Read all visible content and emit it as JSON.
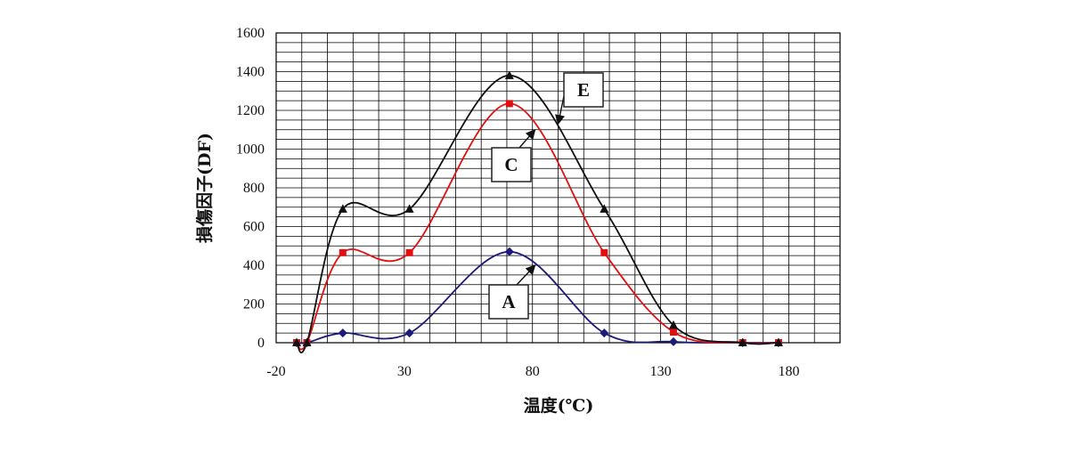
{
  "chart_data": {
    "type": "line",
    "title": "",
    "xlabel": "温度(℃)",
    "ylabel": "損傷因子(DF)",
    "xlim": [
      -20,
      200
    ],
    "ylim": [
      0,
      1600
    ],
    "x_ticks": [
      -20,
      30,
      80,
      130,
      180
    ],
    "y_ticks": [
      0,
      200,
      400,
      600,
      800,
      1000,
      1200,
      1400,
      1600
    ],
    "grid": true,
    "legend": "none",
    "series": [
      {
        "name": "A",
        "color": "#1b1b7a",
        "marker": "diamond",
        "points": [
          [
            -12,
            0
          ],
          [
            -8,
            0
          ],
          [
            6,
            50
          ],
          [
            32,
            50
          ],
          [
            71,
            470
          ],
          [
            108,
            50
          ],
          [
            135,
            5
          ],
          [
            162,
            0
          ],
          [
            176,
            0
          ]
        ]
      },
      {
        "name": "C",
        "color": "#e01010",
        "marker": "square",
        "points": [
          [
            -12,
            0
          ],
          [
            -8,
            0
          ],
          [
            6,
            465
          ],
          [
            32,
            465
          ],
          [
            71,
            1235
          ],
          [
            108,
            465
          ],
          [
            135,
            55
          ],
          [
            162,
            0
          ],
          [
            176,
            0
          ]
        ]
      },
      {
        "name": "E",
        "color": "#111111",
        "marker": "triangle",
        "points": [
          [
            -12,
            0
          ],
          [
            -8,
            0
          ],
          [
            6,
            690
          ],
          [
            32,
            690
          ],
          [
            71,
            1380
          ],
          [
            108,
            690
          ],
          [
            135,
            90
          ],
          [
            162,
            0
          ],
          [
            176,
            0
          ]
        ]
      }
    ],
    "callouts": [
      {
        "label": "E",
        "target": [
          90,
          1130
        ]
      },
      {
        "label": "C",
        "target": [
          81,
          1100
        ]
      },
      {
        "label": "A",
        "target": [
          81,
          400
        ]
      }
    ]
  }
}
